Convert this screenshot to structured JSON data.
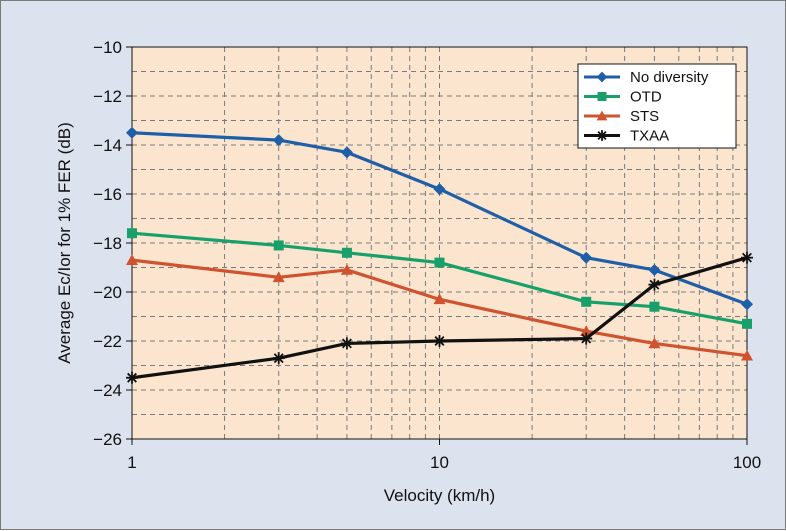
{
  "chart_data": {
    "type": "line",
    "title": "",
    "xlabel": "Velocity (km/h)",
    "ylabel": "Average Ec/Ior for 1% FER (dB)",
    "x_scale": "log",
    "xlim": [
      1,
      100
    ],
    "ylim": [
      -26,
      -10
    ],
    "x_ticks": [
      1,
      10,
      100
    ],
    "x_tick_labels": [
      "1",
      "10",
      "100"
    ],
    "y_ticks": [
      -10,
      -12,
      -14,
      -16,
      -18,
      -20,
      -22,
      -24,
      -26
    ],
    "y_tick_labels": [
      "−10",
      "−12",
      "−14",
      "−16",
      "−18",
      "−20",
      "−22",
      "−24",
      "−26"
    ],
    "grid": true,
    "legend_position": "top-right",
    "plot_background": "#fbe5cf",
    "figure_background": "#dde2ef",
    "series": [
      {
        "name": "No diversity",
        "color": "#1f5fa8",
        "marker": "diamond",
        "x": [
          1,
          3,
          5,
          10,
          30,
          50,
          100
        ],
        "values": [
          -13.5,
          -13.8,
          -14.3,
          -15.8,
          -18.6,
          -19.1,
          -20.5
        ]
      },
      {
        "name": "OTD",
        "color": "#17a06a",
        "marker": "square",
        "x": [
          1,
          3,
          5,
          10,
          30,
          50,
          100
        ],
        "values": [
          -17.6,
          -18.1,
          -18.4,
          -18.8,
          -20.4,
          -20.6,
          -21.3
        ]
      },
      {
        "name": "STS",
        "color": "#d0532f",
        "marker": "triangle",
        "x": [
          1,
          3,
          5,
          10,
          30,
          50,
          100
        ],
        "values": [
          -18.7,
          -19.4,
          -19.1,
          -20.3,
          -21.6,
          -22.1,
          -22.6
        ]
      },
      {
        "name": "TXAA",
        "color": "#111111",
        "marker": "asterisk",
        "x": [
          1,
          3,
          5,
          10,
          30,
          50,
          100
        ],
        "values": [
          -23.5,
          -22.7,
          -22.1,
          -22.0,
          -21.9,
          -19.7,
          -18.6
        ]
      }
    ]
  }
}
